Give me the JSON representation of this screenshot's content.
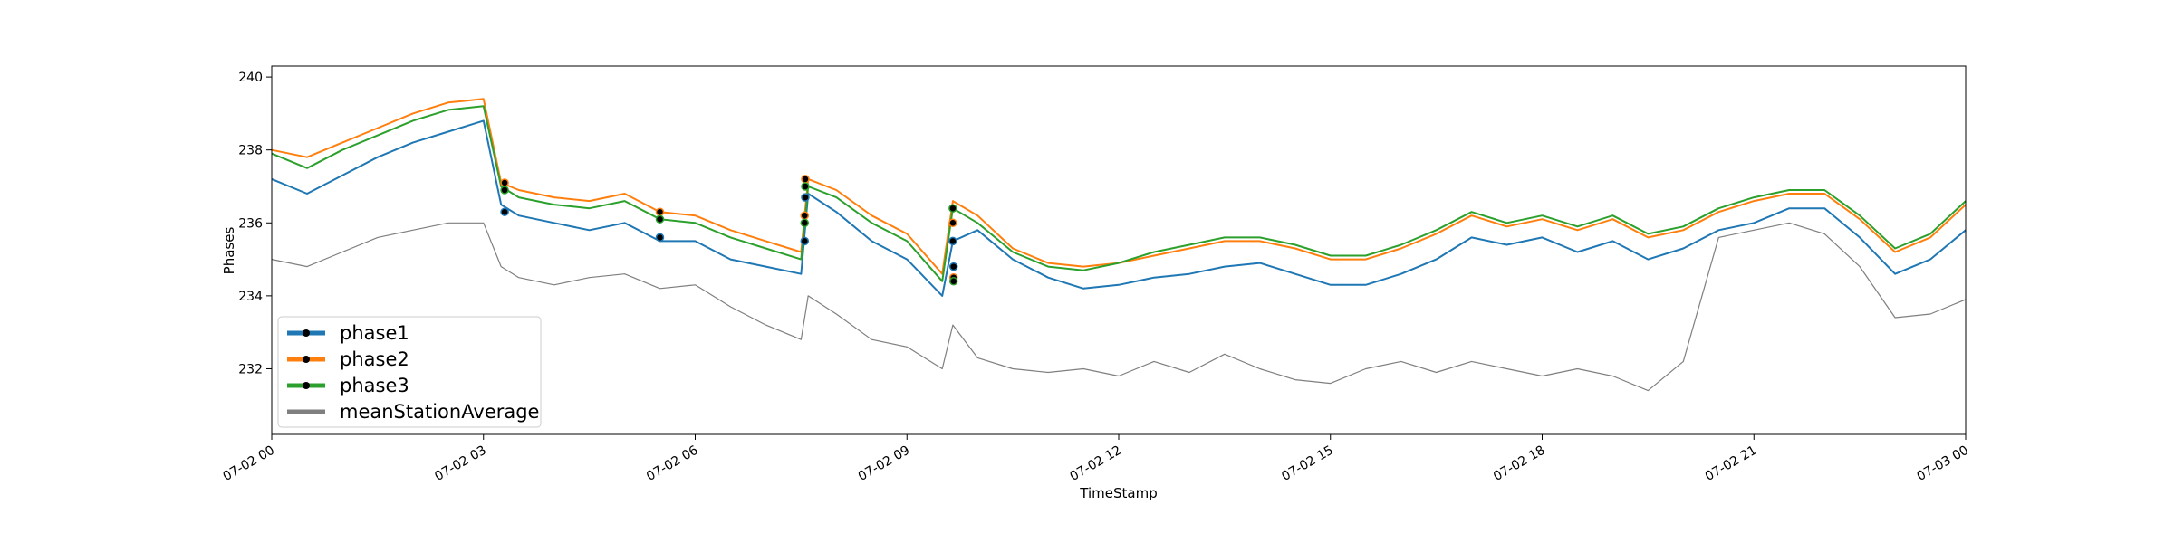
{
  "chart_data": {
    "type": "line",
    "xlabel": "TimeStamp",
    "ylabel": "Phases",
    "x_unit": "hours since 07-02 00:00",
    "xlim": [
      0,
      24
    ],
    "ylim": [
      230.2,
      240.3
    ],
    "x_ticks": [
      {
        "value": 0,
        "label": "07-02 00"
      },
      {
        "value": 3,
        "label": "07-02 03"
      },
      {
        "value": 6,
        "label": "07-02 06"
      },
      {
        "value": 9,
        "label": "07-02 09"
      },
      {
        "value": 12,
        "label": "07-02 12"
      },
      {
        "value": 15,
        "label": "07-02 15"
      },
      {
        "value": 18,
        "label": "07-02 18"
      },
      {
        "value": 21,
        "label": "07-02 21"
      },
      {
        "value": 24,
        "label": "07-03 00"
      }
    ],
    "y_ticks": [
      {
        "value": 232,
        "label": "232"
      },
      {
        "value": 234,
        "label": "234"
      },
      {
        "value": 236,
        "label": "236"
      },
      {
        "value": 238,
        "label": "238"
      },
      {
        "value": 240,
        "label": "240"
      }
    ],
    "grid": false,
    "legend_position": "lower-left",
    "x": [
      0,
      0.5,
      1,
      1.5,
      2,
      2.5,
      3,
      3.25,
      3.5,
      4,
      4.5,
      5,
      5.5,
      6,
      6.5,
      7,
      7.5,
      7.6,
      8,
      8.5,
      9,
      9.5,
      9.65,
      10,
      10.5,
      11,
      11.5,
      12,
      12.5,
      13,
      13.5,
      14,
      14.5,
      15,
      15.5,
      16,
      16.5,
      17,
      17.5,
      18,
      18.5,
      19,
      19.5,
      20,
      20.5,
      21,
      21.5,
      22,
      22.5,
      23,
      23.5,
      24
    ],
    "series": [
      {
        "name": "phase1",
        "color": "#1f77b4",
        "values": [
          237.2,
          236.8,
          237.3,
          237.8,
          238.2,
          238.5,
          238.8,
          236.5,
          236.2,
          236.0,
          235.8,
          236.0,
          235.5,
          235.5,
          235.0,
          234.8,
          234.6,
          236.8,
          236.3,
          235.5,
          235.0,
          234.0,
          235.5,
          235.8,
          235.0,
          234.5,
          234.2,
          234.3,
          234.5,
          234.6,
          234.8,
          234.9,
          234.6,
          234.3,
          234.3,
          234.6,
          235.0,
          235.6,
          235.4,
          235.6,
          235.2,
          235.5,
          235.0,
          235.3,
          235.8,
          236.0,
          236.4,
          236.4,
          235.6,
          234.6,
          235.0,
          235.8
        ]
      },
      {
        "name": "phase2",
        "color": "#ff7f0e",
        "values": [
          238.0,
          237.8,
          238.2,
          238.6,
          239.0,
          239.3,
          239.4,
          237.1,
          236.9,
          236.7,
          236.6,
          236.8,
          236.3,
          236.2,
          235.8,
          235.5,
          235.2,
          237.2,
          236.9,
          236.2,
          235.7,
          234.6,
          236.6,
          236.2,
          235.3,
          234.9,
          234.8,
          234.9,
          235.1,
          235.3,
          235.5,
          235.5,
          235.3,
          235.0,
          235.0,
          235.3,
          235.7,
          236.2,
          235.9,
          236.1,
          235.8,
          236.1,
          235.6,
          235.8,
          236.3,
          236.6,
          236.8,
          236.8,
          236.1,
          235.2,
          235.6,
          236.5
        ]
      },
      {
        "name": "phase3",
        "color": "#2ca02c",
        "values": [
          237.9,
          237.5,
          238.0,
          238.4,
          238.8,
          239.1,
          239.2,
          237.0,
          236.7,
          236.5,
          236.4,
          236.6,
          236.1,
          236.0,
          235.6,
          235.3,
          235.0,
          237.0,
          236.7,
          236.0,
          235.5,
          234.4,
          236.4,
          236.0,
          235.2,
          234.8,
          234.7,
          234.9,
          235.2,
          235.4,
          235.6,
          235.6,
          235.4,
          235.1,
          235.1,
          235.4,
          235.8,
          236.3,
          236.0,
          236.2,
          235.9,
          236.2,
          235.7,
          235.9,
          236.4,
          236.7,
          236.9,
          236.9,
          236.2,
          235.3,
          235.7,
          236.6
        ]
      },
      {
        "name": "meanStationAverage",
        "color": "#7f7f7f",
        "values": [
          235.0,
          234.8,
          235.2,
          235.6,
          235.8,
          236.0,
          236.0,
          234.8,
          234.5,
          234.3,
          234.5,
          234.6,
          234.2,
          234.3,
          233.7,
          233.2,
          232.8,
          234.0,
          233.5,
          232.8,
          232.6,
          232.0,
          233.2,
          232.3,
          232.0,
          231.9,
          232.0,
          231.8,
          232.2,
          231.9,
          232.4,
          232.0,
          231.7,
          231.6,
          232.0,
          232.2,
          231.9,
          232.2,
          232.0,
          231.8,
          232.0,
          231.8,
          231.4,
          232.2,
          235.6,
          235.8,
          236.0,
          235.7,
          234.8,
          233.4,
          233.5,
          233.9
        ]
      }
    ],
    "markers": [
      {
        "series": "phase1",
        "x": [
          3.3,
          5.5,
          7.55,
          7.56,
          9.65,
          9.66
        ],
        "y": [
          236.3,
          235.6,
          235.5,
          236.7,
          235.5,
          234.8
        ]
      },
      {
        "series": "phase2",
        "x": [
          3.3,
          5.5,
          7.55,
          7.56,
          9.65,
          9.66
        ],
        "y": [
          237.1,
          236.3,
          236.2,
          237.2,
          236.0,
          234.5
        ]
      },
      {
        "series": "phase3",
        "x": [
          3.3,
          5.5,
          7.55,
          7.56,
          9.65,
          9.66
        ],
        "y": [
          236.9,
          236.1,
          236.0,
          237.0,
          236.4,
          234.4
        ]
      }
    ]
  }
}
